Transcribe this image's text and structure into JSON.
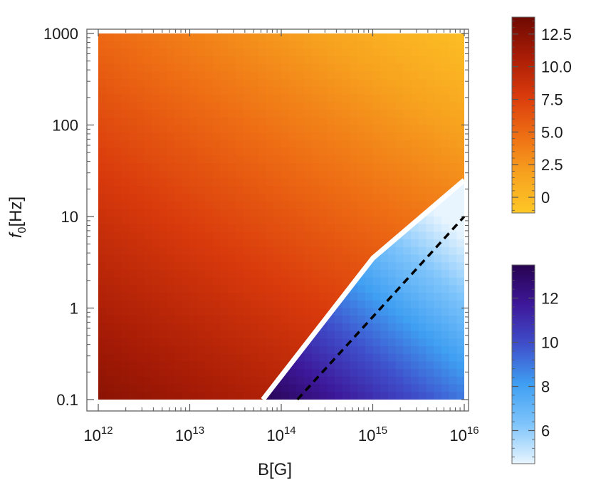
{
  "chart_data": {
    "type": "heatmap",
    "title": "",
    "xlabel": "B[G]",
    "ylabel_var": "f",
    "ylabel_sub": "0",
    "ylabel_unit": "[Hz]",
    "x_scale": "log",
    "y_scale": "log",
    "xlim": [
      1000000000000.0,
      1e+16
    ],
    "ylim": [
      0.1,
      1000
    ],
    "x_ticks": [
      {
        "value": 1000000000000.0,
        "base": "10",
        "exp": "12"
      },
      {
        "value": 10000000000000.0,
        "base": "10",
        "exp": "13"
      },
      {
        "value": 100000000000000.0,
        "base": "10",
        "exp": "14"
      },
      {
        "value": 1000000000000000.0,
        "base": "10",
        "exp": "15"
      },
      {
        "value": 1e+16,
        "base": "10",
        "exp": "16"
      }
    ],
    "y_ticks": [
      {
        "value": 0.1,
        "label": "0.1"
      },
      {
        "value": 1,
        "label": "1"
      },
      {
        "value": 10,
        "label": "10"
      },
      {
        "value": 100,
        "label": "100"
      },
      {
        "value": 1000,
        "label": "1000"
      }
    ],
    "regions": [
      {
        "id": "upper",
        "colorscale": "orange",
        "colors": [
          "#fec726",
          "#f7a21f",
          "#ee6d14",
          "#d93a0c",
          "#a81c06",
          "#6e0a02"
        ],
        "value_range": [
          -1.2,
          13.8
        ],
        "approx_values": {
          "top_right": -0.5,
          "top_left": 3.0,
          "bottom_left": 10.8,
          "near_boundary_low": 12.0
        }
      },
      {
        "id": "lower",
        "colorscale": "blue-purple",
        "colors": [
          "#e8f5fe",
          "#7ec4fb",
          "#3f9ff2",
          "#3f4fcb",
          "#3d189a",
          "#280350"
        ],
        "value_range": [
          4.5,
          13.5
        ],
        "approx_values": {
          "right_top": 5.0,
          "right_bottom": 8.0,
          "left_bottom": 13.0
        }
      }
    ],
    "boundary": {
      "color": "#ffffff",
      "points": [
        [
          63000000000000.0,
          0.1
        ],
        [
          1000000000000000.0,
          3.5
        ],
        [
          1e+16,
          25
        ]
      ]
    },
    "dashed_line": {
      "color": "#000000",
      "style": "dashed",
      "points": [
        [
          150000000000000.0,
          0.1
        ],
        [
          1e+16,
          10
        ]
      ]
    },
    "colorbars": [
      {
        "name": "orange",
        "range": [
          -1.2,
          13.8
        ],
        "ticks": [
          {
            "value": 0,
            "label": "0"
          },
          {
            "value": 2.5,
            "label": "2.5"
          },
          {
            "value": 5,
            "label": "5.0"
          },
          {
            "value": 7.5,
            "label": "7.5"
          },
          {
            "value": 10,
            "label": "10.0"
          },
          {
            "value": 12.5,
            "label": "12.5"
          }
        ]
      },
      {
        "name": "blue-purple",
        "range": [
          4.5,
          13.5
        ],
        "ticks": [
          {
            "value": 6,
            "label": "6"
          },
          {
            "value": 8,
            "label": "8"
          },
          {
            "value": 10,
            "label": "10"
          },
          {
            "value": 12,
            "label": "12"
          }
        ]
      }
    ]
  }
}
